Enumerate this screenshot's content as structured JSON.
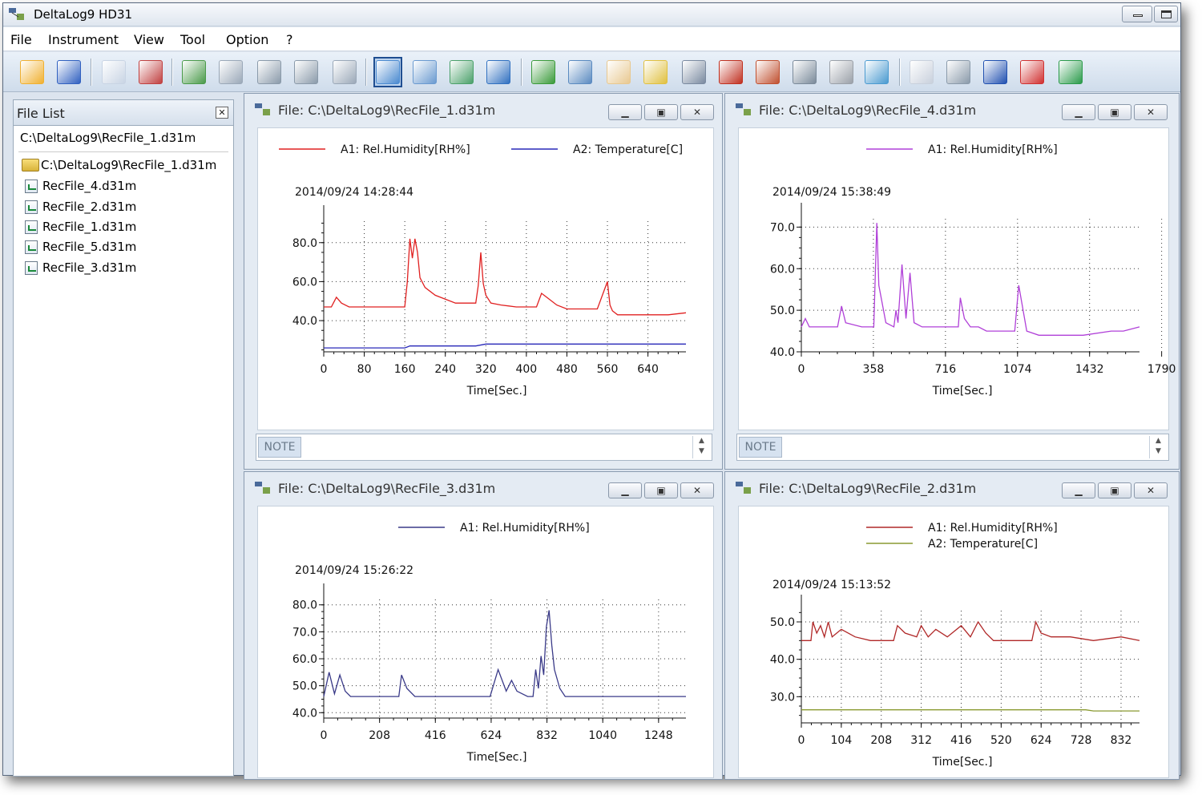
{
  "window": {
    "title": "DeltaLog9 HD31"
  },
  "menu": [
    "File",
    "Instrument",
    "View",
    "Tool",
    "Option",
    "?"
  ],
  "toolbar_icons": [
    "open-folder-icon",
    "save-icon",
    "add-file-icon",
    "delete-file-icon",
    "download-icon",
    "connect-icon",
    "settings-gear-icon",
    "probe-icon",
    "probe-config-icon",
    "chart-view-icon",
    "table-view-icon",
    "dual-chart-icon",
    "info-icon",
    "zoom-in-icon",
    "zoom-out-icon",
    "pan-hand-icon",
    "edit-note-icon",
    "properties-icon",
    "channel-1-icon",
    "channel-2-icon",
    "marker-icon",
    "cursor-icon",
    "fit-chart-icon",
    "copy-icon",
    "export-excel-icon",
    "export-word-icon",
    "export-pdf-icon",
    "statistics-icon"
  ],
  "file_list": {
    "title": "File List",
    "path": "C:\\DeltaLog9\\RecFile_1.d31m",
    "root": "C:\\DeltaLog9\\RecFile_1.d31m",
    "files": [
      "RecFile_4.d31m",
      "RecFile_2.d31m",
      "RecFile_1.d31m",
      "RecFile_5.d31m",
      "RecFile_3.d31m"
    ]
  },
  "windows": [
    {
      "title": "File: C:\\DeltaLog9\\RecFile_1.d31m",
      "note_label": "NOTE"
    },
    {
      "title": "File: C:\\DeltaLog9\\RecFile_4.d31m",
      "note_label": "NOTE"
    },
    {
      "title": "File: C:\\DeltaLog9\\RecFile_3.d31m"
    },
    {
      "title": "File: C:\\DeltaLog9\\RecFile_2.d31m"
    }
  ],
  "chart_data": [
    {
      "type": "line",
      "timestamp": "2014/09/24 14:28:44",
      "xlabel": "Time[Sec.]",
      "xlim": [
        0,
        715
      ],
      "ylim": [
        24,
        91
      ],
      "xticks": [
        0,
        80,
        160,
        240,
        320,
        400,
        480,
        560,
        640
      ],
      "yticks": [
        40,
        60,
        80
      ],
      "ytick_labels": [
        "40.0",
        "60.0",
        "80.0"
      ],
      "grid": true,
      "series": [
        {
          "name": "A1:  Rel.Humidity[RH%]",
          "color": "#e02020",
          "x": [
            0,
            15,
            25,
            35,
            50,
            80,
            120,
            160,
            165,
            170,
            175,
            180,
            185,
            190,
            200,
            220,
            260,
            300,
            305,
            310,
            315,
            320,
            330,
            350,
            380,
            420,
            430,
            440,
            460,
            480,
            500,
            540,
            560,
            565,
            570,
            580,
            620,
            680,
            715
          ],
          "y": [
            47,
            47,
            52,
            49,
            47,
            47,
            47,
            47,
            60,
            82,
            72,
            82,
            75,
            62,
            57,
            53,
            49,
            49,
            58,
            75,
            59,
            53,
            49,
            48,
            47,
            47,
            54,
            52,
            48,
            46,
            46,
            46,
            60,
            48,
            45,
            43,
            43,
            43,
            44
          ]
        },
        {
          "name": "A2:  Temperature[C]",
          "color": "#2828b8",
          "x": [
            0,
            20,
            40,
            60,
            80,
            120,
            160,
            170,
            180,
            240,
            300,
            320,
            360,
            400,
            480,
            560,
            640,
            715
          ],
          "y": [
            26,
            26,
            26,
            26,
            26,
            26,
            26,
            27,
            27,
            27,
            27,
            28,
            28,
            28,
            28,
            28,
            28,
            28
          ]
        }
      ]
    },
    {
      "type": "line",
      "timestamp": "2014/09/24 15:38:49",
      "xlabel": "Time[Sec.]",
      "xlim": [
        0,
        1680
      ],
      "ylim": [
        40,
        72
      ],
      "xticks": [
        0,
        358,
        716,
        1074,
        1432,
        1790
      ],
      "yticks": [
        40,
        50,
        60,
        70
      ],
      "ytick_labels": [
        "40.0",
        "50.0",
        "60.0",
        "70.0"
      ],
      "grid": true,
      "series": [
        {
          "name": "A1:  Rel.Humidity[RH%]",
          "color": "#b040d8",
          "x": [
            0,
            20,
            40,
            80,
            180,
            200,
            220,
            300,
            360,
            375,
            385,
            420,
            460,
            470,
            480,
            500,
            520,
            540,
            560,
            600,
            700,
            780,
            790,
            810,
            840,
            860,
            880,
            920,
            960,
            1000,
            1060,
            1080,
            1120,
            1180,
            1280,
            1400,
            1540,
            1600,
            1680
          ],
          "y": [
            46,
            48,
            46,
            46,
            46,
            51,
            47,
            46,
            46,
            71,
            56,
            47,
            46,
            50,
            47,
            61,
            48,
            59,
            47,
            46,
            46,
            46,
            53,
            48,
            46,
            46,
            46,
            45,
            45,
            45,
            45,
            56,
            45,
            44,
            44,
            44,
            45,
            45,
            46
          ]
        }
      ]
    },
    {
      "type": "line",
      "timestamp": "2014/09/24 15:26:22",
      "xlabel": "Time[Sec.]",
      "xlim": [
        0,
        1350
      ],
      "ylim": [
        38,
        82
      ],
      "xticks": [
        0,
        208,
        416,
        624,
        832,
        1040,
        1248
      ],
      "yticks": [
        40,
        50,
        60,
        70,
        80
      ],
      "ytick_labels": [
        "40.0",
        "50.0",
        "60.0",
        "70.0",
        "80.0"
      ],
      "grid": true,
      "series": [
        {
          "name": "A1:  Rel.Humidity[RH%]",
          "color": "#3a3a88",
          "x": [
            0,
            20,
            40,
            60,
            80,
            100,
            140,
            200,
            280,
            290,
            310,
            340,
            400,
            500,
            620,
            650,
            680,
            700,
            720,
            760,
            780,
            790,
            800,
            810,
            820,
            830,
            840,
            850,
            860,
            880,
            900,
            960,
            1100,
            1350
          ],
          "y": [
            46,
            55,
            47,
            54,
            48,
            46,
            46,
            46,
            46,
            54,
            49,
            46,
            46,
            46,
            46,
            56,
            48,
            52,
            48,
            46,
            46,
            56,
            49,
            61,
            54,
            72,
            78,
            65,
            56,
            49,
            46,
            46,
            46,
            46
          ]
        }
      ]
    },
    {
      "type": "line",
      "timestamp": "2014/09/24 15:13:52",
      "xlabel": "Time[Sec.]",
      "xlim": [
        0,
        880
      ],
      "ylim": [
        23,
        53
      ],
      "xticks": [
        0,
        104,
        208,
        312,
        416,
        520,
        624,
        728,
        832
      ],
      "yticks": [
        30,
        40,
        50
      ],
      "ytick_labels": [
        "30.0",
        "40.0",
        "50.0"
      ],
      "grid": true,
      "series": [
        {
          "name": "A1:  Rel.Humidity[RH%]",
          "color": "#b02828",
          "x": [
            0,
            25,
            30,
            40,
            50,
            60,
            70,
            80,
            104,
            140,
            180,
            208,
            240,
            250,
            270,
            300,
            312,
            330,
            350,
            380,
            416,
            440,
            460,
            480,
            500,
            520,
            560,
            600,
            610,
            624,
            650,
            700,
            760,
            832,
            880
          ],
          "y": [
            45,
            45,
            50,
            47,
            49,
            46,
            50,
            46,
            48,
            46,
            45,
            45,
            45,
            49,
            47,
            46,
            49,
            46,
            48,
            46,
            49,
            46,
            50,
            47,
            45,
            45,
            45,
            45,
            50,
            47,
            46,
            46,
            45,
            46,
            45
          ]
        },
        {
          "name": "A2:  Temperature[C]",
          "color": "#8a9a30",
          "x": [
            0,
            200,
            400,
            600,
            740,
            760,
            800,
            880
          ],
          "y": [
            26.5,
            26.5,
            26.5,
            26.5,
            26.5,
            26.2,
            26.2,
            26.2
          ]
        }
      ]
    }
  ]
}
